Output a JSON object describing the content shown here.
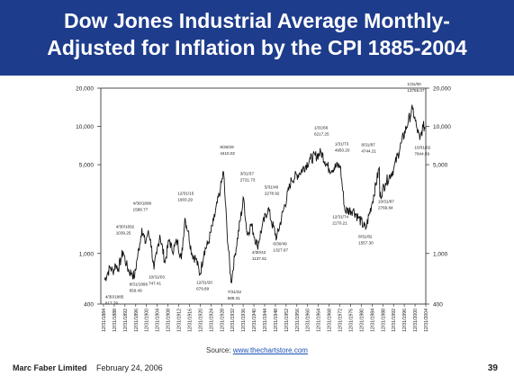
{
  "header": {
    "title_line1": "Dow Jones Industrial Average Monthly-",
    "title_line2": "Adjusted for Inflation by the CPI 1885-2004"
  },
  "chart_data": {
    "type": "line",
    "title": "Dow Jones Industrial Average Monthly-Adjusted for Inflation by the CPI 1885-2004",
    "xlabel": "",
    "ylabel": "",
    "y_scale": "log",
    "ylim": [
      400,
      20000
    ],
    "xlim": [
      1884,
      2005
    ],
    "y_ticks": [
      400,
      1000,
      5000,
      10000,
      20000
    ],
    "y_tick_labels": [
      "400",
      "1,000",
      "5,000",
      "10,000",
      "20,000"
    ],
    "x_tick_labels": [
      "12/31/1884",
      "12/31/1888",
      "12/31/1892",
      "12/31/1896",
      "12/31/1900",
      "12/31/1904",
      "12/31/1908",
      "12/31/1912",
      "12/31/1916",
      "12/31/1920",
      "12/31/1924",
      "12/31/1928",
      "12/31/1932",
      "12/31/1936",
      "12/31/1940",
      "12/31/1944",
      "12/31/1948",
      "12/31/1952",
      "12/31/1956",
      "12/31/1960",
      "12/31/1964",
      "12/31/1968",
      "12/31/1972",
      "12/31/1976",
      "12/31/1980",
      "12/31/1984",
      "12/31/1988",
      "12/31/1992",
      "12/31/1996",
      "12/31/2000",
      "12/31/2004"
    ],
    "series": [
      {
        "color": "#111111",
        "points": [
          [
            1885.3,
            617.79
          ],
          [
            1886.5,
            700
          ],
          [
            1887.5,
            780
          ],
          [
            1888.5,
            720
          ],
          [
            1889.5,
            820
          ],
          [
            1890.5,
            760
          ],
          [
            1891.5,
            900
          ],
          [
            1892.3,
            1039.25
          ],
          [
            1893.5,
            820
          ],
          [
            1894.5,
            720
          ],
          [
            1895.5,
            700
          ],
          [
            1896.6,
            656.49
          ],
          [
            1897.5,
            900
          ],
          [
            1898.5,
            1200
          ],
          [
            1899.3,
            1588.77
          ],
          [
            1900.5,
            1200
          ],
          [
            1901.5,
            1450
          ],
          [
            1902.5,
            1300
          ],
          [
            1903.8,
            747.41
          ],
          [
            1904.8,
            1000
          ],
          [
            1906,
            1400
          ],
          [
            1907.9,
            850
          ],
          [
            1909.5,
            1300
          ],
          [
            1910.5,
            1050
          ],
          [
            1911.5,
            1150
          ],
          [
            1912.5,
            1250
          ],
          [
            1914,
            900
          ],
          [
            1915.3,
            1903.29
          ],
          [
            1916.5,
            1500
          ],
          [
            1917.9,
            1000
          ],
          [
            1919.5,
            900
          ],
          [
            1920.9,
            679.89
          ],
          [
            1922.5,
            1050
          ],
          [
            1924,
            1200
          ],
          [
            1926,
            1800
          ],
          [
            1928.5,
            3200
          ],
          [
            1929.7,
            4410.02
          ],
          [
            1931,
            1500
          ],
          [
            1932.5,
            589.31
          ],
          [
            1934,
            1000
          ],
          [
            1937.2,
            2721.73
          ],
          [
            1938.5,
            1400
          ],
          [
            1940,
            1700
          ],
          [
            1942.3,
            1137.61
          ],
          [
            1944,
            1600
          ],
          [
            1946.3,
            2278.92
          ],
          [
            1947.5,
            1800
          ],
          [
            1949.5,
            1327.97
          ],
          [
            1952,
            2200
          ],
          [
            1955,
            3800
          ],
          [
            1958,
            4300
          ],
          [
            1962,
            5500
          ],
          [
            1966.1,
            6217.25
          ],
          [
            1969,
            4600
          ],
          [
            1973.1,
            4950.2
          ],
          [
            1974.9,
            2170.21
          ],
          [
            1978,
            2200
          ],
          [
            1980,
            1900
          ],
          [
            1982.6,
            1557.3
          ],
          [
            1985,
            2500
          ],
          [
            1987.7,
            4744.21
          ],
          [
            1987.9,
            2769.84
          ],
          [
            1990,
            3600
          ],
          [
            1993,
            4600
          ],
          [
            1996,
            7500
          ],
          [
            1998.5,
            11000
          ],
          [
            2000.1,
            13755.07
          ],
          [
            2001.5,
            10000
          ],
          [
            2002.8,
            7844.59
          ],
          [
            2004,
            10000
          ],
          [
            2004.9,
            9800
          ]
        ]
      }
    ],
    "annotations": [
      {
        "x": 1885.3,
        "date": "4/30/1885",
        "value": "617.79"
      },
      {
        "x": 1892.3,
        "date": "4/30/1892",
        "value": "1039.25"
      },
      {
        "x": 1896.6,
        "date": "8/31/1896",
        "value": "656.49"
      },
      {
        "x": 1899.3,
        "date": "4/30/1899",
        "value": "1588.77"
      },
      {
        "x": 1903.8,
        "date": "10/31/03",
        "value": "747.41"
      },
      {
        "x": 1915.3,
        "date": "12/31/15",
        "value": "1903.29"
      },
      {
        "x": 1920.9,
        "date": "12/31/20",
        "value": "679.89"
      },
      {
        "x": 1929.7,
        "date": "9/30/29",
        "value": "4410.02"
      },
      {
        "x": 1932.5,
        "date": "7/31/32",
        "value": "589.31"
      },
      {
        "x": 1937.2,
        "date": "3/31/37",
        "value": "2721.73"
      },
      {
        "x": 1942.3,
        "date": "4/30/42",
        "value": "1137.61"
      },
      {
        "x": 1946.3,
        "date": "5/31/46",
        "value": "2278.92"
      },
      {
        "x": 1949.5,
        "date": "6/30/49",
        "value": "1327.97"
      },
      {
        "x": 1966.1,
        "date": "1/31/66",
        "value": "6217.25"
      },
      {
        "x": 1973.1,
        "date": "1/31/73",
        "value": "4950.20"
      },
      {
        "x": 1974.9,
        "date": "12/31/74",
        "value": "2170.21"
      },
      {
        "x": 1982.6,
        "date": "8/31/82",
        "value": "1557.30"
      },
      {
        "x": 1987.7,
        "date": "8/31/87",
        "value": "4744.21"
      },
      {
        "x": 1987.9,
        "date": "10/31/87",
        "value": "2769.84"
      },
      {
        "x": 2000.1,
        "date": "1/31/00",
        "value": "13755.07"
      },
      {
        "x": 2002.8,
        "date": "10/31/02",
        "value": "7844.59"
      }
    ]
  },
  "source": {
    "prefix": "Source: ",
    "link_text": "www.thechartstore.com"
  },
  "footer": {
    "org": "Marc Faber Limited",
    "date": "February 24, 2006",
    "page": "39"
  }
}
